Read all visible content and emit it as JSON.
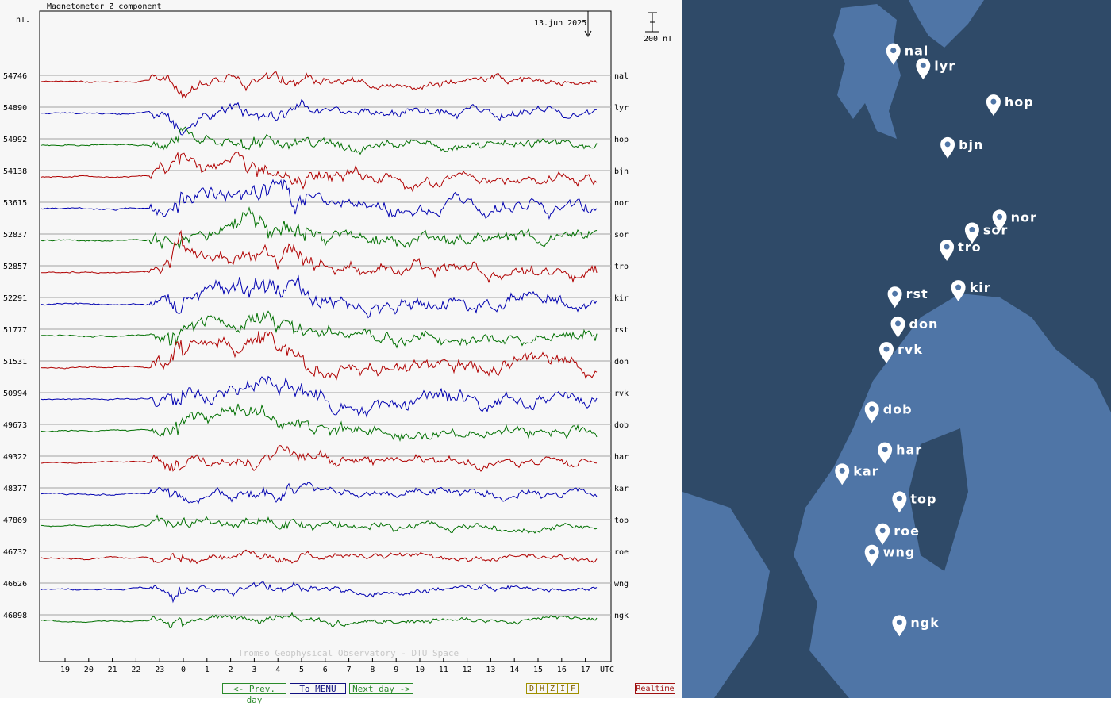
{
  "chart_data": {
    "type": "line",
    "title": "Magnetometer Z component",
    "unit_label": "nT.",
    "date_label": "13.jun 2025",
    "scale_bar_label": "200 nT",
    "x_axis_label": "UTC",
    "x_ticks": [
      "19",
      "20",
      "21",
      "22",
      "23",
      "0",
      "1",
      "2",
      "3",
      "4",
      "5",
      "6",
      "7",
      "8",
      "9",
      "10",
      "11",
      "12",
      "13",
      "14",
      "15",
      "16",
      "17"
    ],
    "watermark": "Tromso Geophysical Observatory - DTU Space",
    "stations": [
      {
        "name": "nal",
        "baseline": "54746",
        "color": "#b00000",
        "activity": 0.35,
        "seed": 3
      },
      {
        "name": "lyr",
        "baseline": "54890",
        "color": "#0000b0",
        "activity": 0.45,
        "seed": 7
      },
      {
        "name": "hop",
        "baseline": "54992",
        "color": "#007000",
        "activity": 0.45,
        "seed": 11
      },
      {
        "name": "bjn",
        "baseline": "54138",
        "color": "#b00000",
        "activity": 0.7,
        "seed": 13
      },
      {
        "name": "nor",
        "baseline": "53615",
        "color": "#0000b0",
        "activity": 0.9,
        "seed": 17
      },
      {
        "name": "sor",
        "baseline": "52837",
        "color": "#007000",
        "activity": 0.9,
        "seed": 19
      },
      {
        "name": "tro",
        "baseline": "52857",
        "color": "#b00000",
        "activity": 0.9,
        "seed": 23
      },
      {
        "name": "kir",
        "baseline": "52291",
        "color": "#0000b0",
        "activity": 1.0,
        "seed": 29
      },
      {
        "name": "rst",
        "baseline": "51777",
        "color": "#007000",
        "activity": 0.8,
        "seed": 31
      },
      {
        "name": "don",
        "baseline": "51531",
        "color": "#b00000",
        "activity": 1.0,
        "seed": 37
      },
      {
        "name": "rvk",
        "baseline": "50994",
        "color": "#0000b0",
        "activity": 1.0,
        "seed": 41
      },
      {
        "name": "dob",
        "baseline": "49673",
        "color": "#007000",
        "activity": 0.7,
        "seed": 43
      },
      {
        "name": "har",
        "baseline": "49322",
        "color": "#b00000",
        "activity": 0.45,
        "seed": 47
      },
      {
        "name": "kar",
        "baseline": "48377",
        "color": "#0000b0",
        "activity": 0.45,
        "seed": 53
      },
      {
        "name": "top",
        "baseline": "47869",
        "color": "#007000",
        "activity": 0.4,
        "seed": 59
      },
      {
        "name": "roe",
        "baseline": "46732",
        "color": "#b00000",
        "activity": 0.15,
        "seed": 61
      },
      {
        "name": "wng",
        "baseline": "46626",
        "color": "#0000b0",
        "activity": 0.15,
        "seed": 67
      },
      {
        "name": "ngk",
        "baseline": "46098",
        "color": "#007000",
        "activity": 0.1,
        "seed": 71
      }
    ]
  },
  "nav": {
    "prev_label": "<- Prev. day",
    "menu_label": "To MENU",
    "next_label": "Next day ->",
    "components": [
      "D",
      "H",
      "Z",
      "I",
      "F"
    ],
    "realtime_label": "Realtime"
  },
  "map": {
    "sea_color": "#2f4a68",
    "land_color": "#4f75a6",
    "markers": [
      {
        "name": "nal",
        "lon": 11.9,
        "lat": 78.9
      },
      {
        "name": "lyr",
        "lon": 15.8,
        "lat": 78.2
      },
      {
        "name": "hop",
        "lon": 25.0,
        "lat": 76.5
      },
      {
        "name": "bjn",
        "lon": 19.0,
        "lat": 74.5
      },
      {
        "name": "nor",
        "lon": 25.8,
        "lat": 71.1
      },
      {
        "name": "sor",
        "lon": 22.2,
        "lat": 70.5
      },
      {
        "name": "tro",
        "lon": 18.9,
        "lat": 69.7
      },
      {
        "name": "rst",
        "lon": 12.1,
        "lat": 67.5
      },
      {
        "name": "kir",
        "lon": 20.4,
        "lat": 67.8
      },
      {
        "name": "don",
        "lon": 12.5,
        "lat": 66.1
      },
      {
        "name": "rvk",
        "lon": 11.0,
        "lat": 64.9
      },
      {
        "name": "dob",
        "lon": 9.1,
        "lat": 62.1
      },
      {
        "name": "har",
        "lon": 10.8,
        "lat": 60.2
      },
      {
        "name": "kar",
        "lon": 5.2,
        "lat": 59.2
      },
      {
        "name": "top",
        "lon": 12.7,
        "lat": 57.9
      },
      {
        "name": "roe",
        "lon": 10.5,
        "lat": 56.4
      },
      {
        "name": "wng",
        "lon": 9.1,
        "lat": 55.4
      },
      {
        "name": "ngk",
        "lon": 12.7,
        "lat": 52.1
      }
    ]
  }
}
